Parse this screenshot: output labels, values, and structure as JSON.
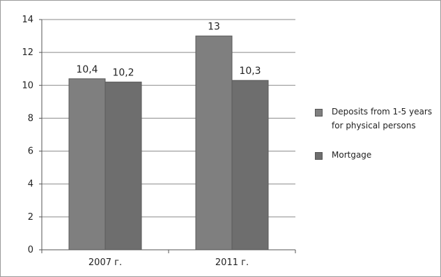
{
  "chart_data": {
    "type": "bar",
    "categories": [
      "2007 г.",
      "2011 г."
    ],
    "series": [
      {
        "name": "Deposits from 1-5 years for physical persons",
        "values": [
          10.4,
          13
        ],
        "labels": [
          "10,4",
          "13"
        ],
        "color": "#7f7f7f"
      },
      {
        "name": "Mortgage",
        "values": [
          10.2,
          10.3
        ],
        "labels": [
          "10,2",
          "10,3"
        ],
        "color": "#6e6e6e"
      }
    ],
    "ylim": [
      0,
      14
    ],
    "yticks": [
      "0",
      "2",
      "4",
      "6",
      "8",
      "10",
      "12",
      "14"
    ],
    "grid": true,
    "legend_position": "right"
  }
}
